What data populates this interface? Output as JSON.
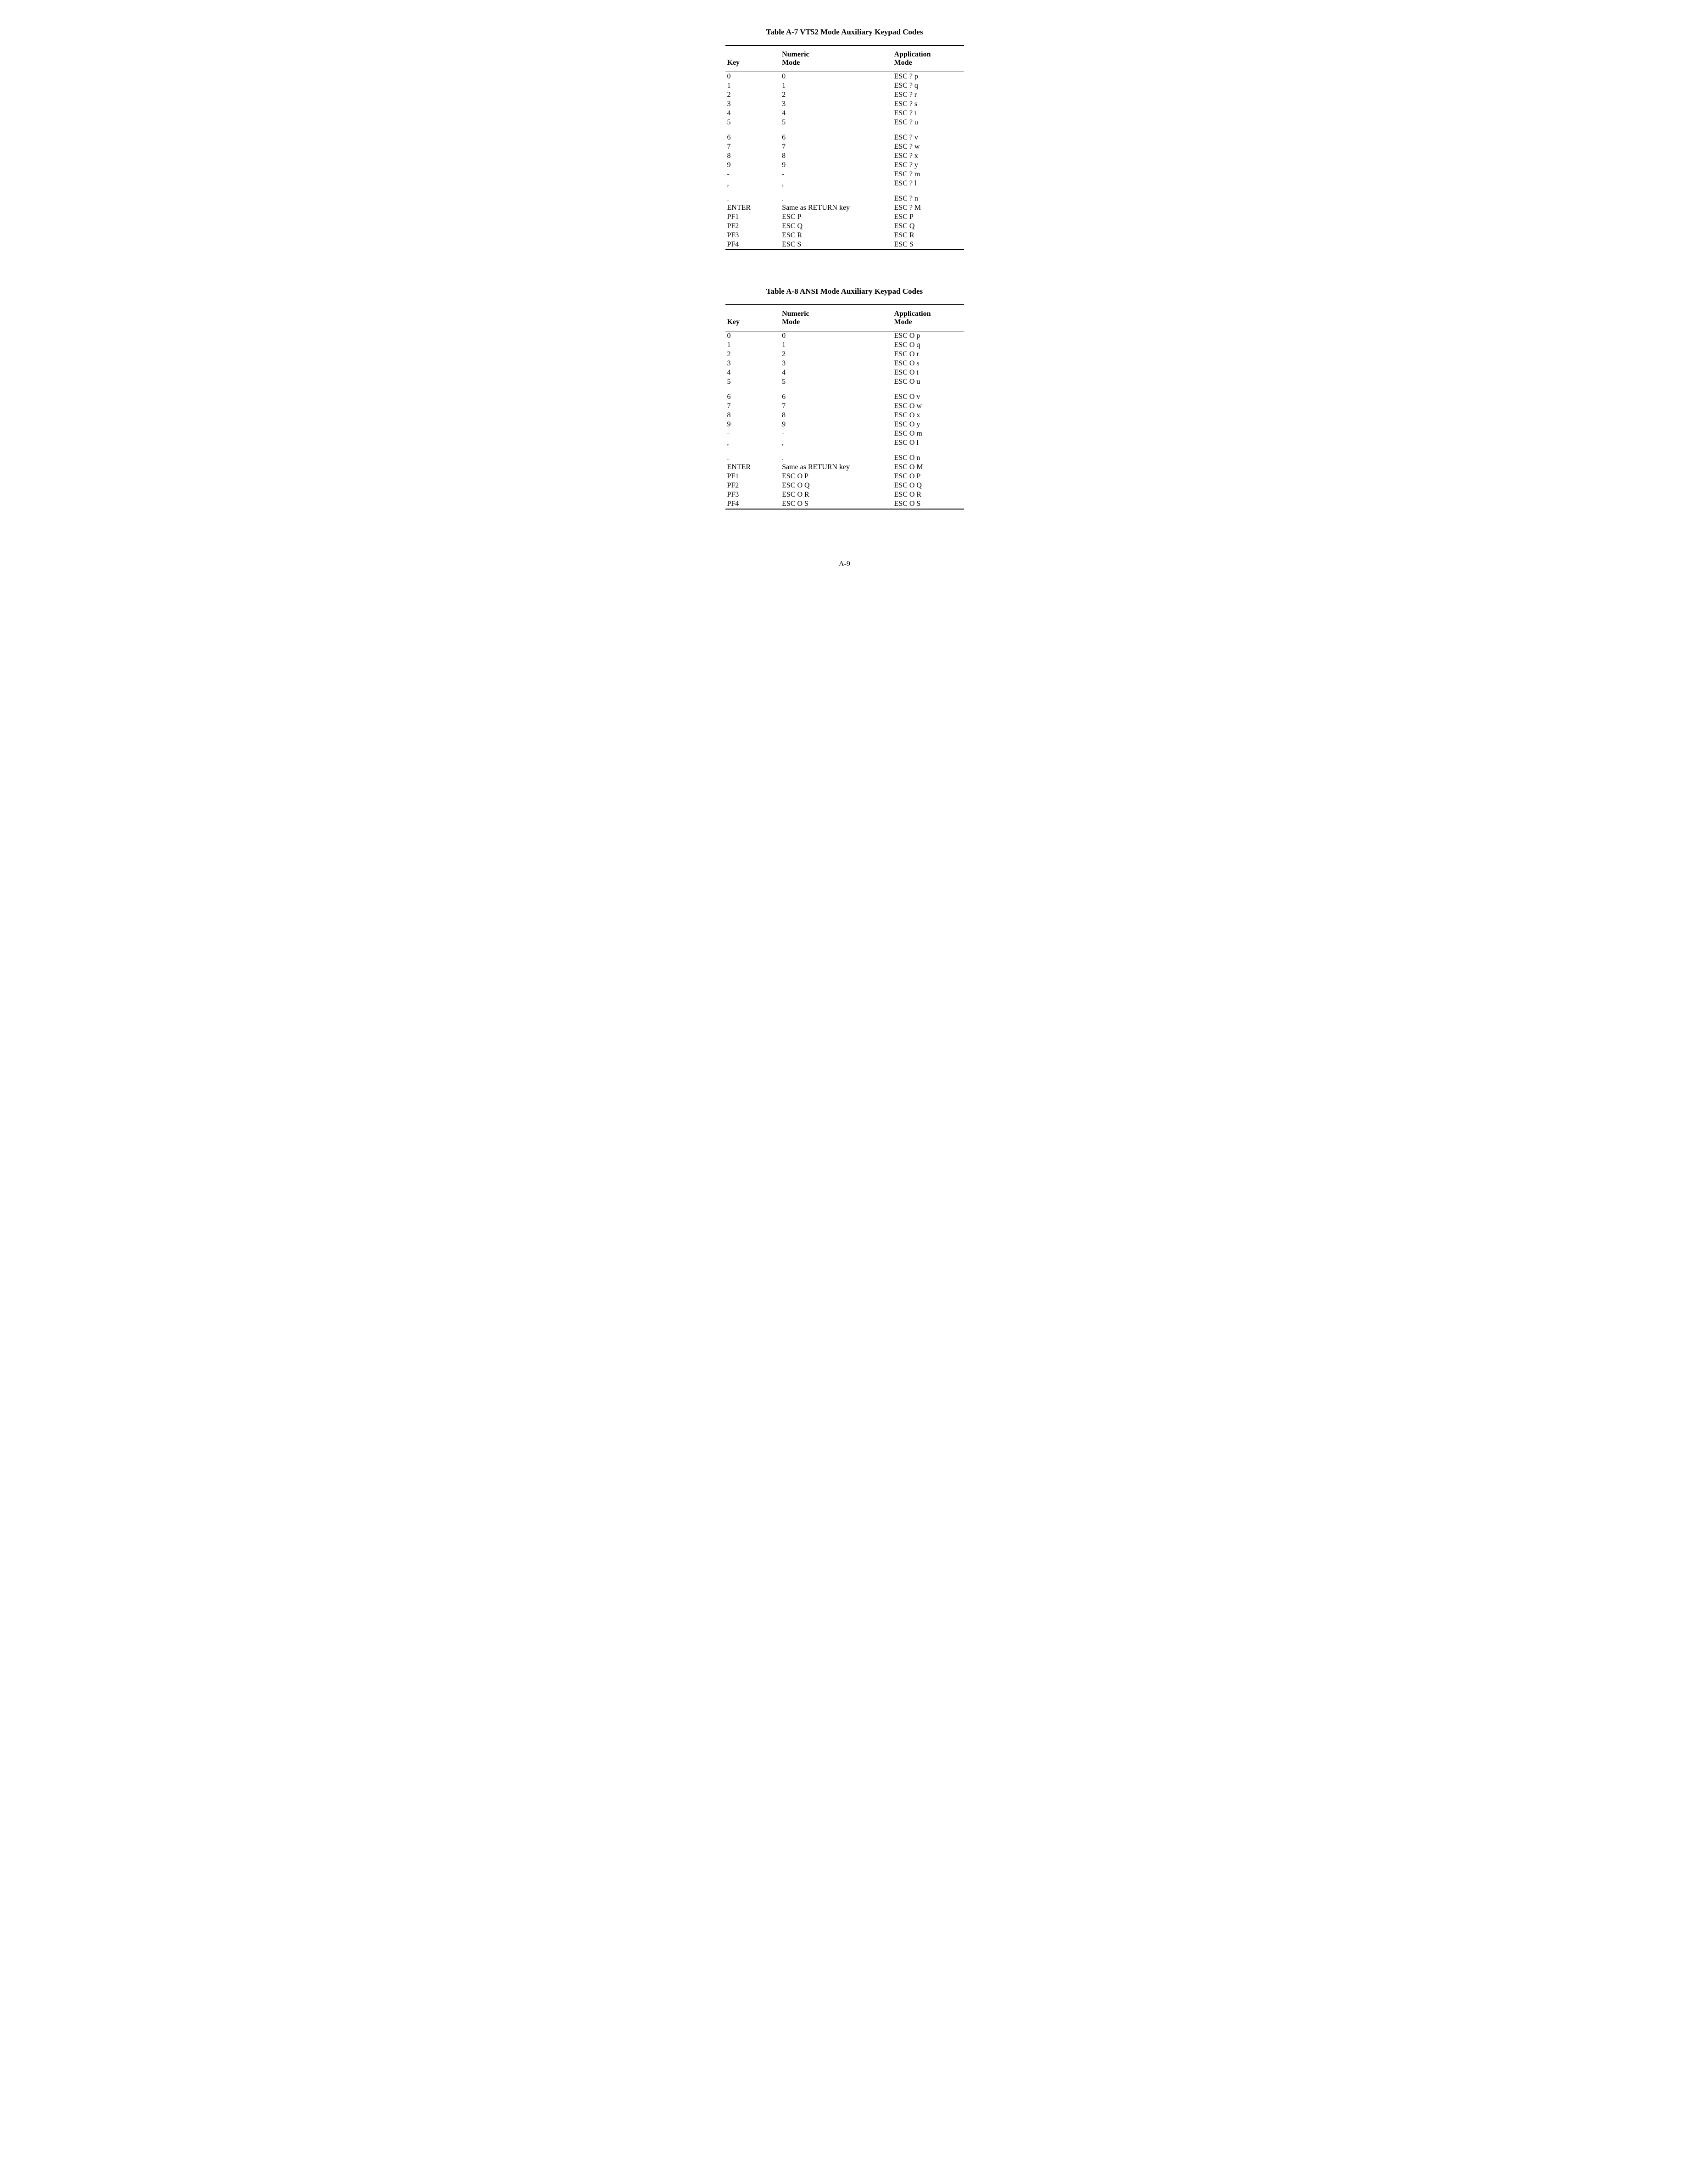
{
  "tableA7": {
    "title": "Table A-7   VT52 Mode Auxiliary Keypad Codes",
    "headers": {
      "key": "Key",
      "numeric": "Numeric\nMode",
      "application": "Application\nMode"
    },
    "groups": [
      [
        {
          "key": "0",
          "num": "0",
          "app": "ESC ? p"
        },
        {
          "key": "1",
          "num": "1",
          "app": "ESC ? q"
        },
        {
          "key": "2",
          "num": "2",
          "app": "ESC ? r"
        },
        {
          "key": "3",
          "num": "3",
          "app": "ESC ? s"
        },
        {
          "key": "4",
          "num": "4",
          "app": "ESC ? t"
        },
        {
          "key": "5",
          "num": "5",
          "app": "ESC ? u"
        }
      ],
      [
        {
          "key": "6",
          "num": "6",
          "app": "ESC ? v"
        },
        {
          "key": "7",
          "num": "7",
          "app": "ESC ? w"
        },
        {
          "key": "8",
          "num": "8",
          "app": "ESC ? x"
        },
        {
          "key": "9",
          "num": "9",
          "app": "ESC ? y"
        },
        {
          "key": "-",
          "num": "-",
          "app": "ESC ? m"
        },
        {
          "key": ",",
          "num": ",",
          "app": "ESC ? l"
        }
      ],
      [
        {
          "key": ".",
          "num": ".",
          "app": "ESC ? n"
        },
        {
          "key": "ENTER",
          "num": "Same as RETURN key",
          "app": "ESC ? M"
        },
        {
          "key": "PF1",
          "num": "ESC P",
          "app": "ESC P"
        },
        {
          "key": "PF2",
          "num": "ESC Q",
          "app": "ESC Q"
        },
        {
          "key": "PF3",
          "num": "ESC R",
          "app": "ESC R"
        },
        {
          "key": "PF4",
          "num": "ESC S",
          "app": "ESC S"
        }
      ]
    ]
  },
  "tableA8": {
    "title": "Table A-8   ANSI Mode Auxiliary Keypad Codes",
    "headers": {
      "key": "Key",
      "numeric": "Numeric\nMode",
      "application": "Application\nMode"
    },
    "groups": [
      [
        {
          "key": "0",
          "num": "0",
          "app": "ESC O p"
        },
        {
          "key": "1",
          "num": "1",
          "app": "ESC O q"
        },
        {
          "key": "2",
          "num": "2",
          "app": "ESC O r"
        },
        {
          "key": "3",
          "num": "3",
          "app": "ESC O s"
        },
        {
          "key": "4",
          "num": "4",
          "app": "ESC O t"
        },
        {
          "key": "5",
          "num": "5",
          "app": "ESC O u"
        }
      ],
      [
        {
          "key": "6",
          "num": "6",
          "app": "ESC O v"
        },
        {
          "key": "7",
          "num": "7",
          "app": "ESC O w"
        },
        {
          "key": "8",
          "num": "8",
          "app": "ESC O x"
        },
        {
          "key": "9",
          "num": "9",
          "app": "ESC O y"
        },
        {
          "key": "-",
          "num": "-",
          "app": "ESC O m"
        },
        {
          "key": ",",
          "num": ",",
          "app": "ESC O l"
        }
      ],
      [
        {
          "key": ".",
          "num": ".",
          "app": "ESC O n"
        },
        {
          "key": "ENTER",
          "num": "Same as RETURN key",
          "app": "ESC O M"
        },
        {
          "key": "PF1",
          "num": "ESC O P",
          "app": "ESC O P"
        },
        {
          "key": "PF2",
          "num": "ESC O Q",
          "app": "ESC O Q"
        },
        {
          "key": "PF3",
          "num": "ESC O R",
          "app": "ESC O R"
        },
        {
          "key": "PF4",
          "num": "ESC O S",
          "app": "ESC O S"
        }
      ]
    ]
  },
  "pageNumber": "A-9"
}
